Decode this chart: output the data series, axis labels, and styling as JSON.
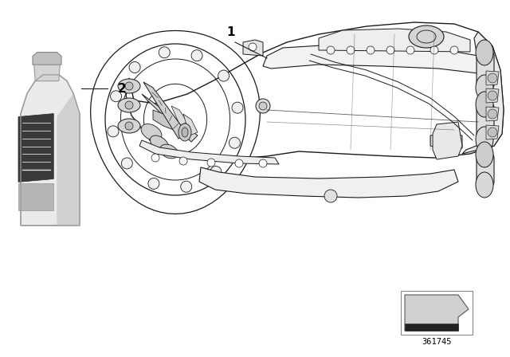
{
  "background_color": "#ffffff",
  "line_color": "#1a1a1a",
  "light_gray": "#e8e8e8",
  "mid_gray": "#c0c0c0",
  "dark_gray": "#555555",
  "part_number": "361745",
  "label_1": "1",
  "label_2": "2",
  "label_fontsize": 10,
  "part_fontsize": 7.5,
  "fig_w": 6.4,
  "fig_h": 4.48,
  "dpi": 100
}
